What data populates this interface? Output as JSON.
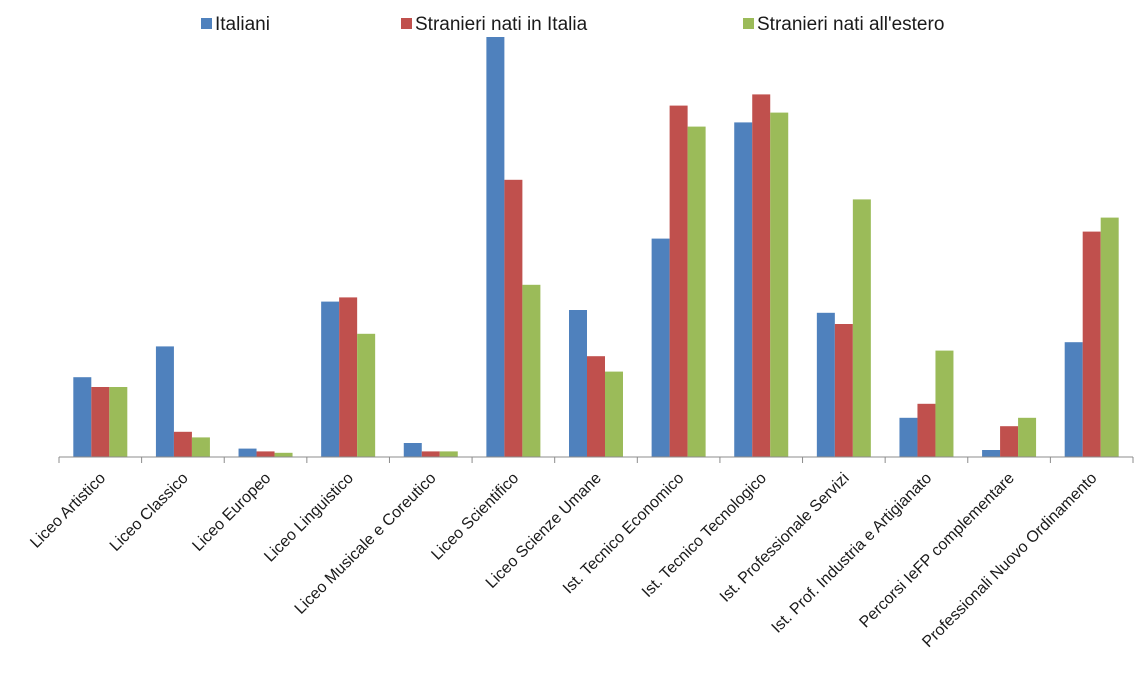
{
  "chart_data": {
    "type": "bar",
    "title": "",
    "xlabel": "",
    "ylabel": "",
    "ylim": [
      0,
      30
    ],
    "grid": false,
    "legend_position": "top",
    "categories": [
      "Liceo Artistico",
      "Liceo Classico",
      "Liceo Europeo",
      "Liceo Linguistico",
      "Liceo Musicale e Coreutico",
      "Liceo Scientifico",
      "Liceo Scienze Umane",
      "Ist. Tecnico Economico",
      "Ist. Tecnico Tecnologico",
      "Ist. Professionale Servizi",
      "Ist. Prof. Industria e Artigianato",
      "Percorsi IeFP complementare",
      "Professionali Nuovo Ordinamento"
    ],
    "series": [
      {
        "name": "Italiani",
        "color": "#4F81BD",
        "values": [
          5.7,
          7.9,
          0.6,
          11.1,
          1.0,
          30.0,
          10.5,
          15.6,
          23.9,
          10.3,
          2.8,
          0.5,
          8.2
        ]
      },
      {
        "name": "Stranieri nati in Italia",
        "color": "#C0504D",
        "values": [
          5.0,
          1.8,
          0.4,
          11.4,
          0.4,
          19.8,
          7.2,
          25.1,
          25.9,
          9.5,
          3.8,
          2.2,
          16.1
        ]
      },
      {
        "name": "Stranieri nati all'estero",
        "color": "#9BBB59",
        "values": [
          5.0,
          1.4,
          0.3,
          8.8,
          0.4,
          12.3,
          6.1,
          23.6,
          24.6,
          18.4,
          7.6,
          2.8,
          17.1
        ]
      }
    ]
  }
}
